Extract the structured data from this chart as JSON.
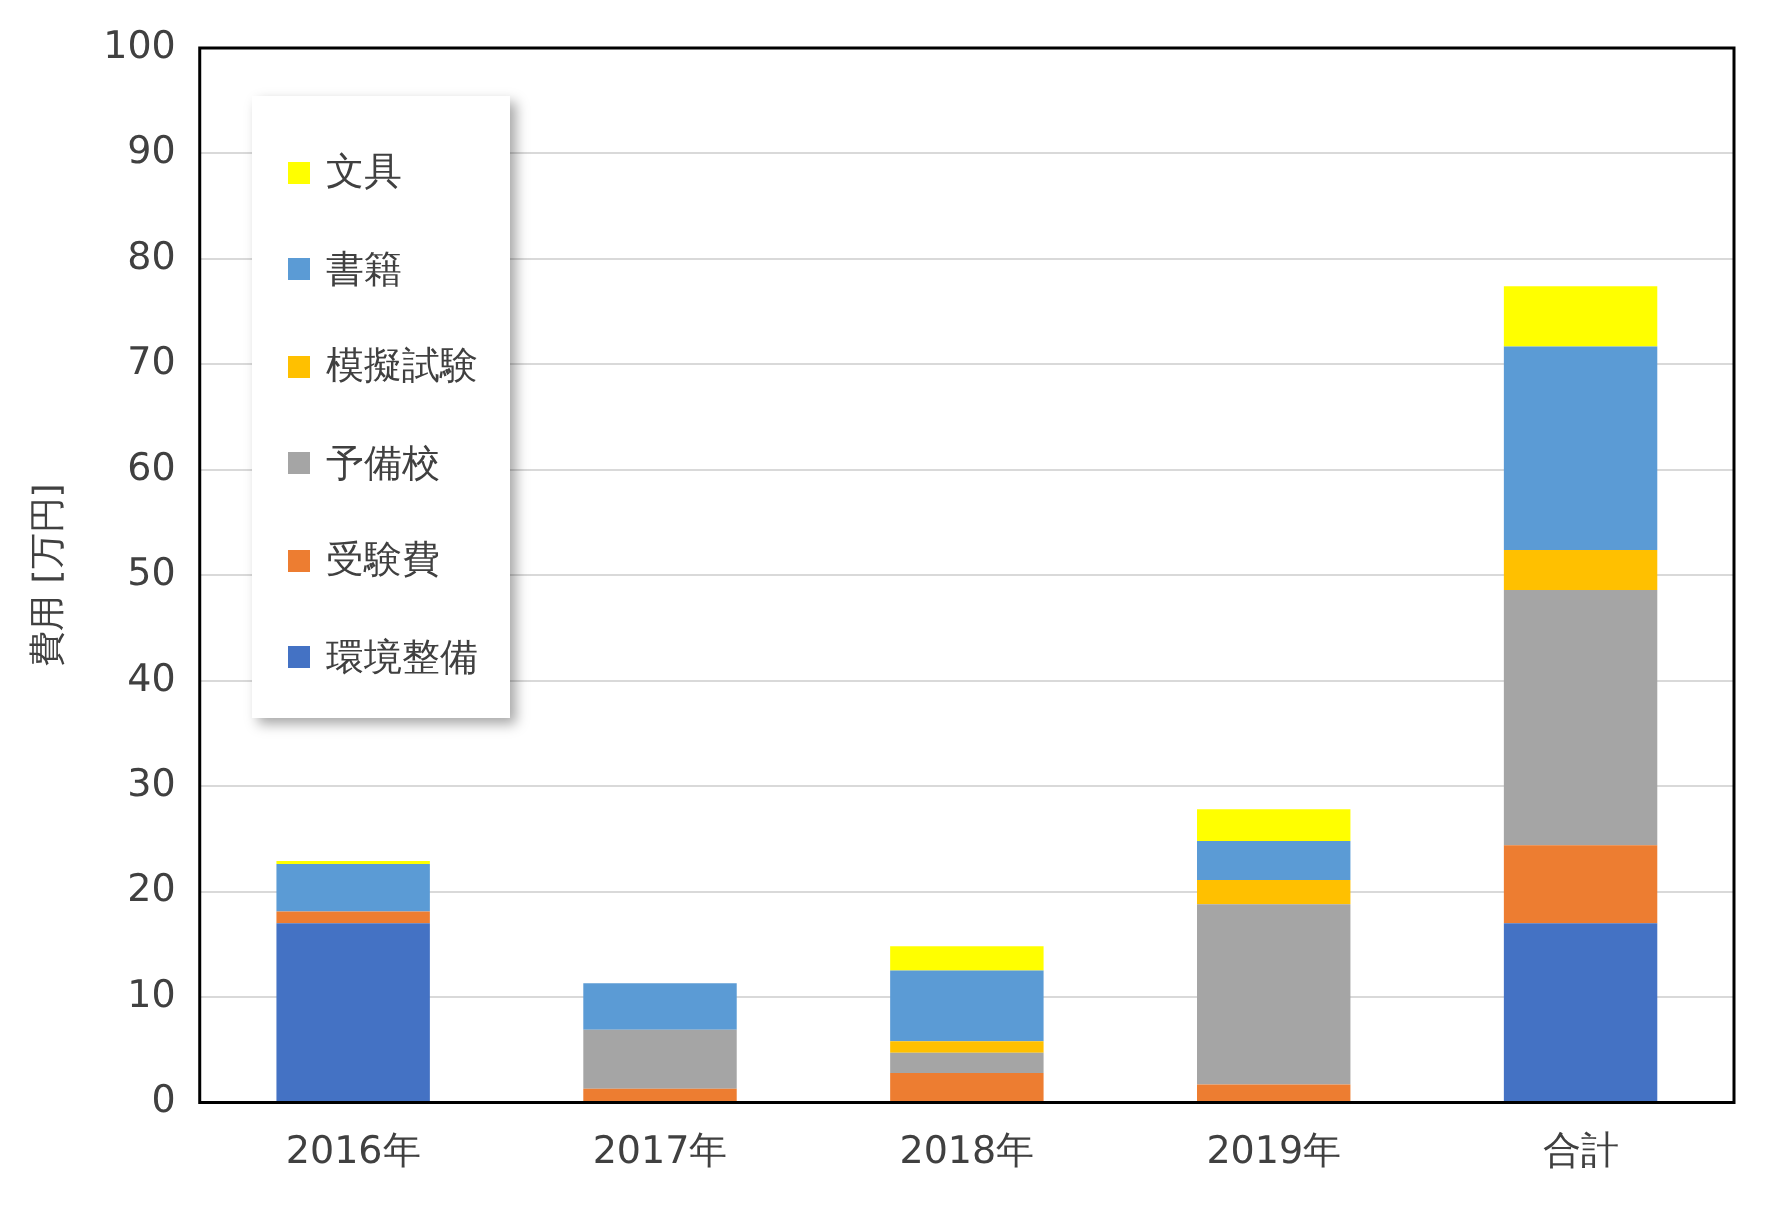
{
  "chart_data": {
    "type": "bar",
    "stacked": true,
    "ylabel": "費用 [万円]",
    "categories": [
      "2016年",
      "2017年",
      "2018年",
      "2019年",
      "合計"
    ],
    "series": [
      {
        "name": "環境整備",
        "color": "#4472c4",
        "values": [
          17.0,
          0,
          0,
          0,
          17.0
        ]
      },
      {
        "name": "受験費",
        "color": "#ed7d31",
        "values": [
          1.1,
          1.3,
          2.8,
          1.7,
          7.4
        ]
      },
      {
        "name": "予備校",
        "color": "#a5a5a5",
        "values": [
          0,
          5.6,
          1.9,
          17.1,
          24.2
        ]
      },
      {
        "name": "模擬試験",
        "color": "#ffc000",
        "values": [
          0,
          0,
          1.1,
          2.3,
          3.8
        ]
      },
      {
        "name": "書籍",
        "color": "#5b9bd5",
        "values": [
          4.5,
          4.4,
          6.7,
          3.7,
          19.3
        ]
      },
      {
        "name": "文具",
        "color": "#ffff00",
        "values": [
          0.3,
          0,
          2.3,
          3.0,
          5.7
        ]
      }
    ],
    "ylim": [
      0,
      100
    ],
    "yticks": [
      0,
      10,
      20,
      30,
      40,
      50,
      60,
      70,
      80,
      90,
      100
    ],
    "grid": "y",
    "legend": "top left"
  }
}
